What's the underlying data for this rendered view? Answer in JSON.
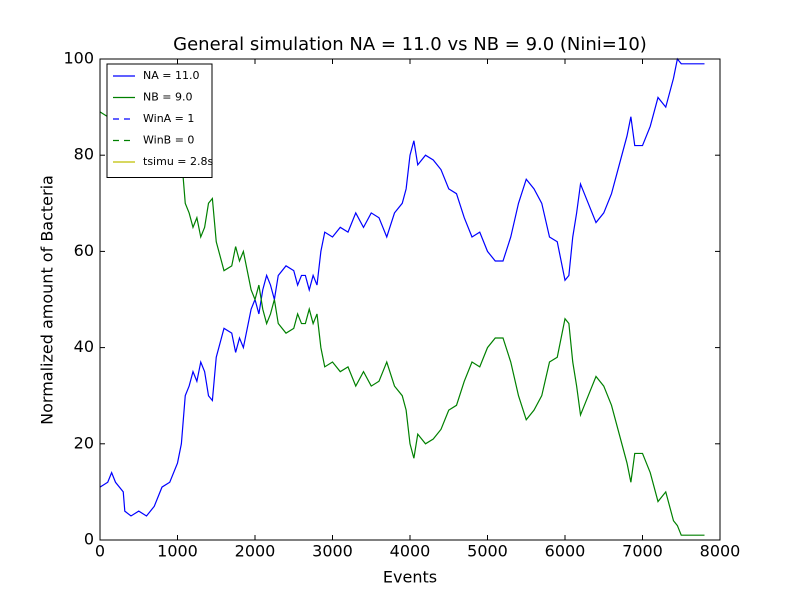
{
  "chart_data": {
    "type": "line",
    "title": "General simulation NA = 11.0 vs NB = 9.0 (Nini=10)",
    "xlabel": "Events",
    "ylabel": "Normalized amount of Bacteria",
    "x": [
      0,
      100,
      150,
      200,
      300,
      320,
      400,
      500,
      600,
      700,
      800,
      900,
      1000,
      1050,
      1100,
      1150,
      1200,
      1250,
      1300,
      1350,
      1400,
      1450,
      1500,
      1600,
      1700,
      1750,
      1800,
      1850,
      1900,
      1950,
      2000,
      2050,
      2100,
      2150,
      2200,
      2250,
      2300,
      2400,
      2500,
      2550,
      2600,
      2650,
      2700,
      2750,
      2800,
      2850,
      2900,
      3000,
      3100,
      3200,
      3300,
      3400,
      3500,
      3600,
      3700,
      3800,
      3900,
      3950,
      4000,
      4050,
      4100,
      4200,
      4300,
      4400,
      4500,
      4600,
      4700,
      4800,
      4900,
      5000,
      5100,
      5200,
      5300,
      5400,
      5500,
      5600,
      5700,
      5800,
      5900,
      6000,
      6050,
      6100,
      6150,
      6200,
      6300,
      6400,
      6500,
      6600,
      6700,
      6800,
      6850,
      6900,
      7000,
      7100,
      7200,
      7300,
      7400,
      7450,
      7500,
      7800
    ],
    "series": [
      {
        "name": "NA = 11.0",
        "color": "#0000ff",
        "values": [
          11,
          12,
          14,
          12,
          10,
          6,
          5,
          6,
          5,
          7,
          11,
          12,
          16,
          20,
          30,
          32,
          35,
          33,
          37,
          35,
          30,
          29,
          38,
          44,
          43,
          39,
          42,
          40,
          44,
          48,
          50,
          47,
          52,
          55,
          53,
          50,
          55,
          57,
          56,
          53,
          55,
          55,
          52,
          55,
          53,
          60,
          64,
          63,
          65,
          64,
          68,
          65,
          68,
          67,
          63,
          68,
          70,
          73,
          80,
          83,
          78,
          80,
          79,
          77,
          73,
          72,
          67,
          63,
          64,
          60,
          58,
          58,
          63,
          70,
          75,
          73,
          70,
          63,
          62,
          54,
          55,
          63,
          68,
          74,
          70,
          66,
          68,
          72,
          78,
          84,
          88,
          82,
          82,
          86,
          92,
          90,
          96,
          100,
          99,
          99
        ]
      },
      {
        "name": "NB = 9.0",
        "color": "#008000",
        "values": [
          89,
          88,
          86,
          88,
          90,
          94,
          95,
          94,
          95,
          93,
          89,
          88,
          84,
          80,
          70,
          68,
          65,
          67,
          63,
          65,
          70,
          71,
          62,
          56,
          57,
          61,
          58,
          60,
          56,
          52,
          50,
          53,
          48,
          45,
          47,
          50,
          45,
          43,
          44,
          47,
          45,
          45,
          48,
          45,
          47,
          40,
          36,
          37,
          35,
          36,
          32,
          35,
          32,
          33,
          37,
          32,
          30,
          27,
          20,
          17,
          22,
          20,
          21,
          23,
          27,
          28,
          33,
          37,
          36,
          40,
          42,
          42,
          37,
          30,
          25,
          27,
          30,
          37,
          38,
          46,
          45,
          37,
          32,
          26,
          30,
          34,
          32,
          28,
          22,
          16,
          12,
          18,
          18,
          14,
          8,
          10,
          4,
          3,
          1,
          1
        ]
      }
    ],
    "legend_extras": [
      {
        "name": "WinA = 1",
        "color": "#0000ff",
        "dashed": true
      },
      {
        "name": "WinB = 0",
        "color": "#008000",
        "dashed": true
      },
      {
        "name": "tsimu = 2.8s",
        "color": "#bfbf00",
        "dashed": false
      }
    ],
    "xlim": [
      0,
      8000
    ],
    "xticks": [
      0,
      1000,
      2000,
      3000,
      4000,
      5000,
      6000,
      7000,
      8000
    ],
    "ylim": [
      0,
      100
    ],
    "yticks": [
      0,
      20,
      40,
      60,
      80,
      100
    ],
    "grid": false,
    "legend": "upper left"
  }
}
